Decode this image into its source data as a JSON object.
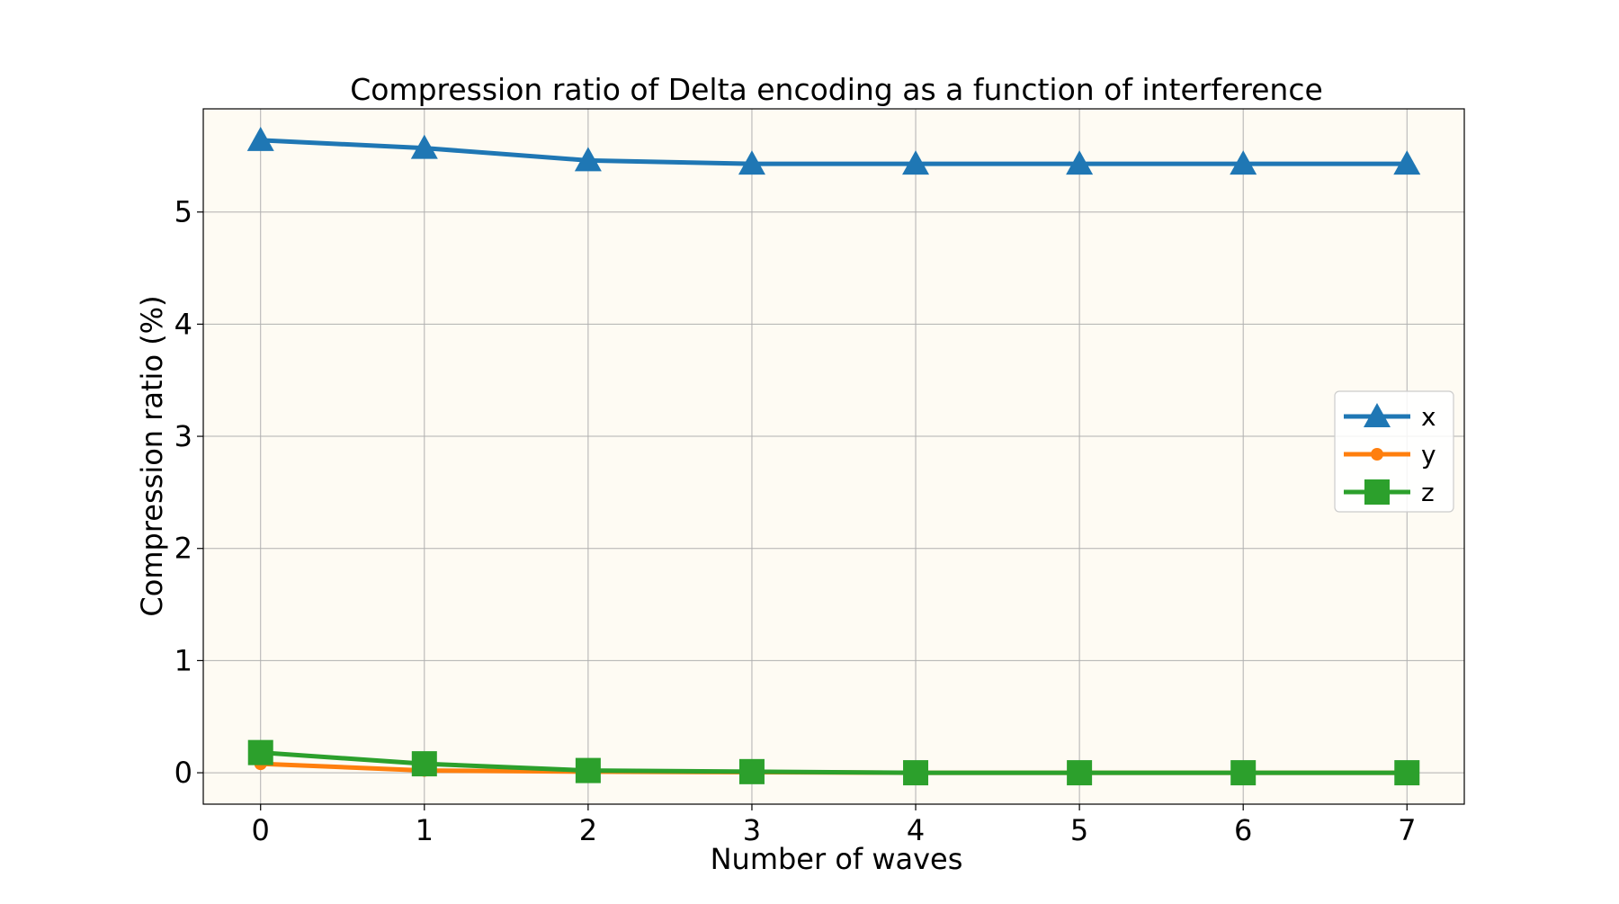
{
  "colors": {
    "plot_background": "#fefbf3",
    "x_series": "#1f77b4",
    "y_series": "#ff7f0e",
    "z_series": "#2ca02c",
    "grid": "#b0b0b0"
  },
  "chart_data": {
    "type": "line",
    "title": "Compression ratio of Delta encoding as a function of interference",
    "xlabel": "Number of waves",
    "ylabel": "Compression ratio (%)",
    "x": [
      0,
      1,
      2,
      3,
      4,
      5,
      6,
      7
    ],
    "xlim": [
      -0.35,
      7.35
    ],
    "ylim": [
      -0.28,
      5.92
    ],
    "xticks": [
      0,
      1,
      2,
      3,
      4,
      5,
      6,
      7
    ],
    "yticks": [
      0,
      1,
      2,
      3,
      4,
      5
    ],
    "grid": true,
    "legend_position": "center-right",
    "series": [
      {
        "name": "x",
        "marker": "triangle",
        "values": [
          5.64,
          5.57,
          5.46,
          5.43,
          5.43,
          5.43,
          5.43,
          5.43
        ]
      },
      {
        "name": "y",
        "marker": "circle",
        "values": [
          0.08,
          0.02,
          0.01,
          0.005,
          0.0,
          0.0,
          0.0,
          0.0
        ]
      },
      {
        "name": "z",
        "marker": "square",
        "values": [
          0.18,
          0.08,
          0.02,
          0.01,
          0.0,
          0.0,
          0.0,
          0.0
        ]
      }
    ]
  }
}
